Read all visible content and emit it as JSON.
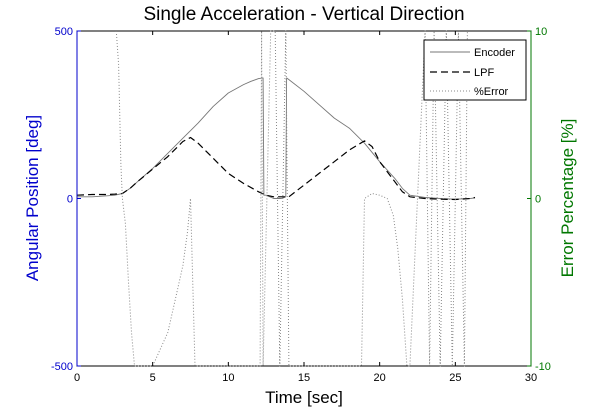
{
  "chart_data": {
    "type": "line",
    "title": "Single Acceleration - Vertical Direction",
    "xlabel": "Time [sec]",
    "ylabel_left": "Angular Position [deg]",
    "ylabel_right": "Error Percentage [%]",
    "xlim": [
      0,
      30
    ],
    "ylim_left": [
      -500,
      500
    ],
    "ylim_right": [
      -10,
      10
    ],
    "xticks": [
      "0",
      "5",
      "10",
      "15",
      "20",
      "25",
      "30"
    ],
    "yticks_left": [
      "-500",
      "0",
      "500"
    ],
    "yticks_right": [
      "-10",
      "0",
      "10"
    ],
    "legend_position": "top-right",
    "colors": {
      "left_axis": "#0000cc",
      "right_axis": "#007700",
      "series": "#000000",
      "encoder": "#777777",
      "error": "#888888"
    },
    "series": [
      {
        "name": "Encoder",
        "style": "solid",
        "axis": "left",
        "x": [
          0,
          1,
          2,
          2.5,
          3,
          3.5,
          4,
          5,
          6,
          7,
          8,
          9,
          10,
          11,
          11.5,
          12,
          12.3,
          12.35,
          12.5,
          13,
          13.5,
          13.8,
          13.85,
          14,
          15,
          16,
          17,
          18,
          19,
          20,
          21,
          21.5,
          22,
          23,
          24,
          25,
          26,
          26.3
        ],
        "y": [
          5,
          5,
          8,
          10,
          15,
          30,
          50,
          90,
          135,
          180,
          225,
          275,
          315,
          340,
          350,
          358,
          360,
          10,
          10,
          0,
          0,
          5,
          360,
          355,
          320,
          280,
          240,
          210,
          165,
          110,
          60,
          30,
          10,
          3,
          0,
          -2,
          0,
          2
        ]
      },
      {
        "name": "LPF",
        "style": "dashed",
        "axis": "left",
        "x": [
          0,
          1,
          2,
          2.5,
          3,
          3.5,
          4,
          5,
          6,
          7,
          7.5,
          8,
          9,
          10,
          11,
          12,
          12.5,
          13,
          13.5,
          14,
          15,
          16,
          17,
          18,
          19,
          19.5,
          20,
          21,
          21.5,
          22,
          23,
          24,
          25,
          26,
          26.3
        ],
        "y": [
          10,
          12,
          12,
          13,
          15,
          30,
          50,
          88,
          125,
          170,
          182,
          165,
          120,
          75,
          45,
          20,
          10,
          5,
          5,
          5,
          40,
          75,
          110,
          145,
          172,
          155,
          110,
          50,
          20,
          5,
          0,
          -2,
          -3,
          0,
          3
        ]
      },
      {
        "name": "%Error",
        "style": "dotted",
        "axis": "right",
        "x": [
          2.6,
          2.75,
          2.9,
          3.0,
          3.2,
          3.4,
          3.6,
          3.8,
          4.0,
          4.3,
          4.6,
          5.0,
          5.5,
          6.0,
          6.5,
          7.0,
          7.3,
          7.5,
          7.8,
          8.0,
          12.1,
          12.2,
          12.3,
          12.8,
          13.1,
          13.4,
          13.8,
          14.0,
          18.8,
          19.0,
          19.5,
          20.0,
          20.5,
          20.9,
          21.2,
          21.5,
          21.8,
          22.0,
          23.0,
          23.3,
          23.6,
          24.0,
          24.4,
          24.8,
          25.2,
          25.6,
          25.8
        ],
        "y": [
          10,
          8,
          2,
          0,
          -1.5,
          -5,
          -8,
          -10,
          -10,
          -10,
          -10,
          -10,
          -9,
          -8,
          -6,
          -4,
          -2,
          0,
          -10,
          -10,
          -10,
          10,
          -10,
          10,
          10,
          -10,
          10,
          -10,
          -10,
          0,
          0.3,
          0.2,
          0,
          -1,
          -3,
          -6,
          -10,
          -10,
          10,
          -10,
          10,
          -10,
          10,
          -10,
          10,
          -10,
          10
        ]
      }
    ]
  }
}
